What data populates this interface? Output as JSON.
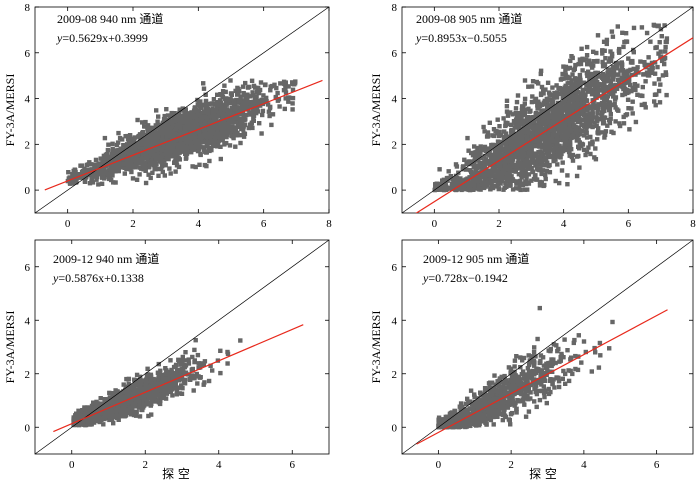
{
  "figure_xlabel": "探 空",
  "colors": {
    "points": "#666666",
    "regression": "#e8291c",
    "reference": "#000000",
    "frame": "#000000"
  },
  "chart_data": [
    {
      "type": "scatter",
      "id": "p1",
      "title": "2009-08 940 nm 通道",
      "equation": "y=0.5629x+0.3999",
      "eq_y": "y",
      "eq_rest": "=0.5629x+0.3999",
      "xlabel": "",
      "ylabel": "FY-3A/MERSI",
      "xlim": [
        -1,
        8
      ],
      "ylim": [
        -1,
        8
      ],
      "xticks": [
        0,
        2,
        4,
        6,
        8
      ],
      "yticks": [
        0,
        2,
        4,
        6,
        8
      ],
      "regression": {
        "slope": 0.5629,
        "intercept": 0.3999,
        "x_range": [
          -0.7,
          7.8
        ]
      },
      "reference": {
        "x_range": [
          -1,
          8
        ]
      },
      "scatter_model": {
        "n": 2200,
        "seed": 11,
        "x_mu": 3.3,
        "x_sd": 1.35,
        "x_min": 0.0,
        "x_max": 7.0,
        "slope": 0.5629,
        "intercept": 0.3999,
        "noise": 0.55,
        "y_min": 0.25,
        "y_max": 4.8
      }
    },
    {
      "type": "scatter",
      "id": "p2",
      "title": "2009-08 905 nm 通道",
      "equation": "y=0.8953x−0.5055",
      "eq_y": "y",
      "eq_rest": "=0.8953x−0.5055",
      "xlabel": "",
      "ylabel": "FY-3A/MERSI",
      "xlim": [
        -1,
        8
      ],
      "ylim": [
        -1,
        8
      ],
      "xticks": [
        0,
        2,
        4,
        6,
        8
      ],
      "yticks": [
        0,
        2,
        4,
        6,
        8
      ],
      "regression": {
        "slope": 0.8953,
        "intercept": -0.5055,
        "x_range": [
          -0.6,
          8
        ]
      },
      "reference": {
        "x_range": [
          -1,
          8
        ]
      },
      "scatter_model": {
        "n": 2200,
        "seed": 23,
        "x_mu": 3.4,
        "x_sd": 1.6,
        "x_min": 0.0,
        "x_max": 7.2,
        "slope": 0.8953,
        "intercept": -0.5055,
        "noise": 1.0,
        "y_min": 0.0,
        "y_max": 7.3
      }
    },
    {
      "type": "scatter",
      "id": "p3",
      "title": "2009-12 940 nm 通道",
      "equation": "y=0.5876x+0.1338",
      "eq_y": "y",
      "eq_rest": "=0.5876x+0.1338",
      "xlabel": "",
      "ylabel": "FY-3A/MERSI",
      "xlim": [
        -1,
        7
      ],
      "ylim": [
        -1,
        7
      ],
      "xticks": [
        0,
        2,
        4,
        6
      ],
      "yticks": [
        0,
        2,
        4,
        6
      ],
      "regression": {
        "slope": 0.5876,
        "intercept": 0.1338,
        "x_range": [
          -0.5,
          6.3
        ]
      },
      "reference": {
        "x_range": [
          -1,
          7
        ]
      },
      "scatter_model": {
        "n": 1800,
        "seed": 37,
        "x_mu": 1.2,
        "x_sd": 1.0,
        "x_min": 0.05,
        "x_max": 5.6,
        "slope": 0.5876,
        "intercept": 0.1338,
        "noise": 0.35,
        "y_min": 0.08,
        "y_max": 4.0
      }
    },
    {
      "type": "scatter",
      "id": "p4",
      "title": "2009-12 905 nm 通道",
      "equation": "y=0.728x−0.1942",
      "eq_y": "y",
      "eq_rest": "=0.728x−0.1942",
      "xlabel": "",
      "ylabel": "FY-3A/MERSI",
      "xlim": [
        -1,
        7
      ],
      "ylim": [
        -1,
        7
      ],
      "xticks": [
        0,
        2,
        4,
        6
      ],
      "yticks": [
        0,
        2,
        4,
        6
      ],
      "regression": {
        "slope": 0.728,
        "intercept": -0.1942,
        "x_range": [
          -0.6,
          6.3
        ]
      },
      "reference": {
        "x_range": [
          -1,
          7
        ]
      },
      "scatter_model": {
        "n": 1000,
        "seed": 51,
        "x_mu": 1.4,
        "x_sd": 1.1,
        "x_min": 0.0,
        "x_max": 5.6,
        "slope": 0.728,
        "intercept": -0.1942,
        "noise": 0.55,
        "y_min": 0.0,
        "y_max": 5.5
      }
    }
  ]
}
